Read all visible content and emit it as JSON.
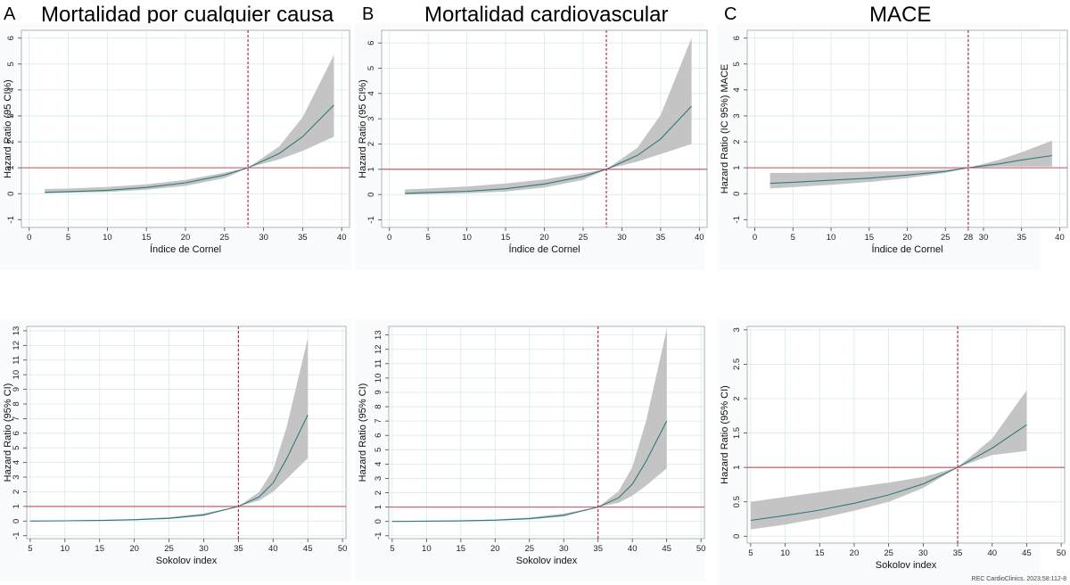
{
  "figure": {
    "columns": [
      {
        "letter": "A",
        "title": "Mortalidad por cualquier causa"
      },
      {
        "letter": "B",
        "title": "Mortalidad cardiovascular"
      },
      {
        "letter": "C",
        "title": "MACE"
      }
    ],
    "source": "REC CardioClinics. 2023;58:112-8"
  },
  "chart_data": [
    {
      "id": "A-top",
      "type": "line",
      "title": "Mortalidad por cualquier causa",
      "xlabel": "Índice de Cornel",
      "ylabel": "Hazard Ratio (95 CI%)",
      "xlim": [
        -1,
        41
      ],
      "ylim": [
        -1.3,
        6.3
      ],
      "xticks": [
        "0",
        "5",
        "10",
        "15",
        "20",
        "25",
        "30",
        "35",
        "40"
      ],
      "yticks": [
        "-1",
        "0",
        "1",
        "2",
        "3",
        "4",
        "5",
        "6"
      ],
      "reference_y": 1,
      "reference_x": 28,
      "series": [
        {
          "name": "HR",
          "x": [
            2,
            5,
            10,
            15,
            20,
            25,
            28,
            32,
            35,
            39
          ],
          "y": [
            0.05,
            0.08,
            0.13,
            0.24,
            0.42,
            0.72,
            1.0,
            1.55,
            2.2,
            3.42
          ]
        },
        {
          "name": "lower CI",
          "x": [
            2,
            5,
            10,
            15,
            20,
            25,
            28,
            32,
            35,
            39
          ],
          "y": [
            0.02,
            0.04,
            0.07,
            0.15,
            0.3,
            0.6,
            1.0,
            1.32,
            1.65,
            2.2
          ]
        },
        {
          "name": "upper CI",
          "x": [
            2,
            5,
            10,
            15,
            20,
            25,
            28,
            32,
            35,
            39
          ],
          "y": [
            0.18,
            0.2,
            0.26,
            0.36,
            0.53,
            0.81,
            1.0,
            1.82,
            2.95,
            5.35
          ]
        }
      ]
    },
    {
      "id": "B-top",
      "type": "line",
      "title": "Mortalidad cardiovascular",
      "xlabel": "Índice de Cornel",
      "ylabel": "Hazard Ratio (95 CI%)",
      "xlim": [
        -1,
        41
      ],
      "ylim": [
        -1.3,
        6.5
      ],
      "xticks": [
        "0",
        "5",
        "10",
        "15",
        "20",
        "25",
        "30",
        "35",
        "40"
      ],
      "yticks": [
        "-1",
        "0",
        "1",
        "2",
        "3",
        "4",
        "5",
        "6"
      ],
      "reference_y": 1,
      "reference_x": 28,
      "series": [
        {
          "name": "HR",
          "x": [
            2,
            5,
            10,
            15,
            20,
            25,
            28,
            32,
            35,
            39
          ],
          "y": [
            0.05,
            0.08,
            0.13,
            0.23,
            0.42,
            0.72,
            1.0,
            1.55,
            2.2,
            3.5
          ]
        },
        {
          "name": "lower CI",
          "x": [
            2,
            5,
            10,
            15,
            20,
            25,
            28,
            32,
            35,
            39
          ],
          "y": [
            0.0,
            0.02,
            0.05,
            0.12,
            0.28,
            0.58,
            1.0,
            1.3,
            1.6,
            2.0
          ]
        },
        {
          "name": "upper CI",
          "x": [
            2,
            5,
            10,
            15,
            20,
            25,
            28,
            32,
            35,
            39
          ],
          "y": [
            0.2,
            0.24,
            0.32,
            0.44,
            0.6,
            0.85,
            1.0,
            1.85,
            3.15,
            6.2
          ]
        }
      ]
    },
    {
      "id": "C-top",
      "type": "line",
      "title": "MACE",
      "xlabel": "Índice de Cornel",
      "ylabel": "Hazard Ratio (IC 95%) MACE",
      "xlim": [
        -1,
        41
      ],
      "ylim": [
        -1.3,
        6.3
      ],
      "xticks": [
        "0",
        "5",
        "10",
        "15",
        "20",
        "25",
        "28",
        "30",
        "35",
        "40"
      ],
      "yticks": [
        "-1",
        "0",
        "1",
        "2",
        "3",
        "4",
        "5",
        "6"
      ],
      "reference_y": 1,
      "reference_x": 28,
      "series": [
        {
          "name": "HR",
          "x": [
            2,
            5,
            10,
            15,
            20,
            25,
            28,
            32,
            35,
            39
          ],
          "y": [
            0.4,
            0.44,
            0.52,
            0.6,
            0.72,
            0.86,
            1.0,
            1.15,
            1.3,
            1.47
          ]
        },
        {
          "name": "lower CI",
          "x": [
            2,
            5,
            10,
            15,
            20,
            25,
            28,
            32,
            35,
            39
          ],
          "y": [
            0.2,
            0.25,
            0.34,
            0.45,
            0.6,
            0.8,
            1.0,
            1.05,
            1.05,
            1.05
          ]
        },
        {
          "name": "upper CI",
          "x": [
            2,
            5,
            10,
            15,
            20,
            25,
            28,
            32,
            35,
            39
          ],
          "y": [
            0.8,
            0.8,
            0.82,
            0.85,
            0.88,
            0.93,
            1.0,
            1.3,
            1.6,
            2.05
          ]
        }
      ]
    },
    {
      "id": "A-bottom",
      "type": "line",
      "title": "",
      "xlabel": "Sokolov index",
      "ylabel": "Hazard Ratio (95% CI)",
      "xlim": [
        4.5,
        50.5
      ],
      "ylim": [
        -1.2,
        13.3
      ],
      "xticks": [
        "5",
        "10",
        "15",
        "20",
        "25",
        "30",
        "35",
        "40",
        "45",
        "50"
      ],
      "yticks": [
        "-1",
        "0",
        "1",
        "2",
        "3",
        "4",
        "5",
        "6",
        "7",
        "8",
        "9",
        "10",
        "11",
        "12",
        "13"
      ],
      "reference_y": 1,
      "reference_x": 35,
      "series": [
        {
          "name": "HR",
          "x": [
            5,
            10,
            15,
            20,
            25,
            30,
            35,
            38,
            40,
            42,
            45
          ],
          "y": [
            0.0,
            0.02,
            0.04,
            0.09,
            0.19,
            0.42,
            1.0,
            1.65,
            2.6,
            4.3,
            7.25
          ]
        },
        {
          "name": "lower CI",
          "x": [
            5,
            10,
            15,
            20,
            25,
            30,
            35,
            38,
            40,
            42,
            45
          ],
          "y": [
            0.0,
            0.01,
            0.02,
            0.06,
            0.14,
            0.35,
            1.0,
            1.4,
            2.0,
            2.9,
            4.3
          ]
        },
        {
          "name": "upper CI",
          "x": [
            5,
            10,
            15,
            20,
            25,
            30,
            35,
            38,
            40,
            42,
            45
          ],
          "y": [
            0.03,
            0.05,
            0.08,
            0.14,
            0.26,
            0.52,
            1.0,
            2.0,
            3.5,
            6.5,
            12.5
          ]
        }
      ]
    },
    {
      "id": "B-bottom",
      "type": "line",
      "title": "",
      "xlabel": "Sokolov index",
      "ylabel": "Hazard Ratio (95% CI)",
      "xlim": [
        4.5,
        50.5
      ],
      "ylim": [
        -1.2,
        13.6
      ],
      "xticks": [
        "5",
        "10",
        "15",
        "20",
        "25",
        "30",
        "35",
        "40",
        "45",
        "50"
      ],
      "yticks": [
        "-1",
        "0",
        "1",
        "2",
        "3",
        "4",
        "5",
        "6",
        "7",
        "8",
        "9",
        "10",
        "11",
        "12",
        "13"
      ],
      "reference_y": 1,
      "reference_x": 35,
      "series": [
        {
          "name": "HR",
          "x": [
            5,
            10,
            15,
            20,
            25,
            30,
            35,
            38,
            40,
            42,
            45
          ],
          "y": [
            0.0,
            0.02,
            0.04,
            0.09,
            0.19,
            0.42,
            1.0,
            1.65,
            2.6,
            4.2,
            7.0
          ]
        },
        {
          "name": "lower CI",
          "x": [
            5,
            10,
            15,
            20,
            25,
            30,
            35,
            38,
            40,
            42,
            45
          ],
          "y": [
            0.0,
            0.01,
            0.02,
            0.06,
            0.14,
            0.35,
            1.0,
            1.3,
            1.8,
            2.5,
            3.7
          ]
        },
        {
          "name": "upper CI",
          "x": [
            5,
            10,
            15,
            20,
            25,
            30,
            35,
            38,
            40,
            42,
            45
          ],
          "y": [
            0.03,
            0.05,
            0.08,
            0.14,
            0.27,
            0.55,
            1.0,
            2.1,
            3.8,
            7.0,
            13.4
          ]
        }
      ]
    },
    {
      "id": "C-bottom",
      "type": "line",
      "title": "",
      "xlabel": "Sokolov index",
      "ylabel": "Hazard Ratio (95% CI)",
      "xlim": [
        4.5,
        50.5
      ],
      "ylim": [
        -0.1,
        3.05
      ],
      "xticks": [
        "5",
        "10",
        "15",
        "20",
        "25",
        "30",
        "35",
        "40",
        "45",
        "50"
      ],
      "yticks": [
        "0",
        "0.5",
        "1",
        "1.5",
        "2",
        "2.5",
        "3"
      ],
      "reference_y": 1,
      "reference_x": 35,
      "series": [
        {
          "name": "HR",
          "x": [
            5,
            10,
            15,
            20,
            25,
            30,
            35,
            40,
            45
          ],
          "y": [
            0.23,
            0.3,
            0.38,
            0.48,
            0.6,
            0.76,
            1.0,
            1.28,
            1.62
          ]
        },
        {
          "name": "lower CI",
          "x": [
            5,
            10,
            15,
            20,
            25,
            30,
            35,
            40,
            45
          ],
          "y": [
            0.1,
            0.17,
            0.26,
            0.37,
            0.5,
            0.7,
            1.0,
            1.18,
            1.24
          ]
        },
        {
          "name": "upper CI",
          "x": [
            5,
            10,
            15,
            20,
            25,
            30,
            35,
            40,
            45
          ],
          "y": [
            0.5,
            0.57,
            0.64,
            0.71,
            0.78,
            0.86,
            1.0,
            1.42,
            2.12
          ]
        }
      ]
    }
  ]
}
